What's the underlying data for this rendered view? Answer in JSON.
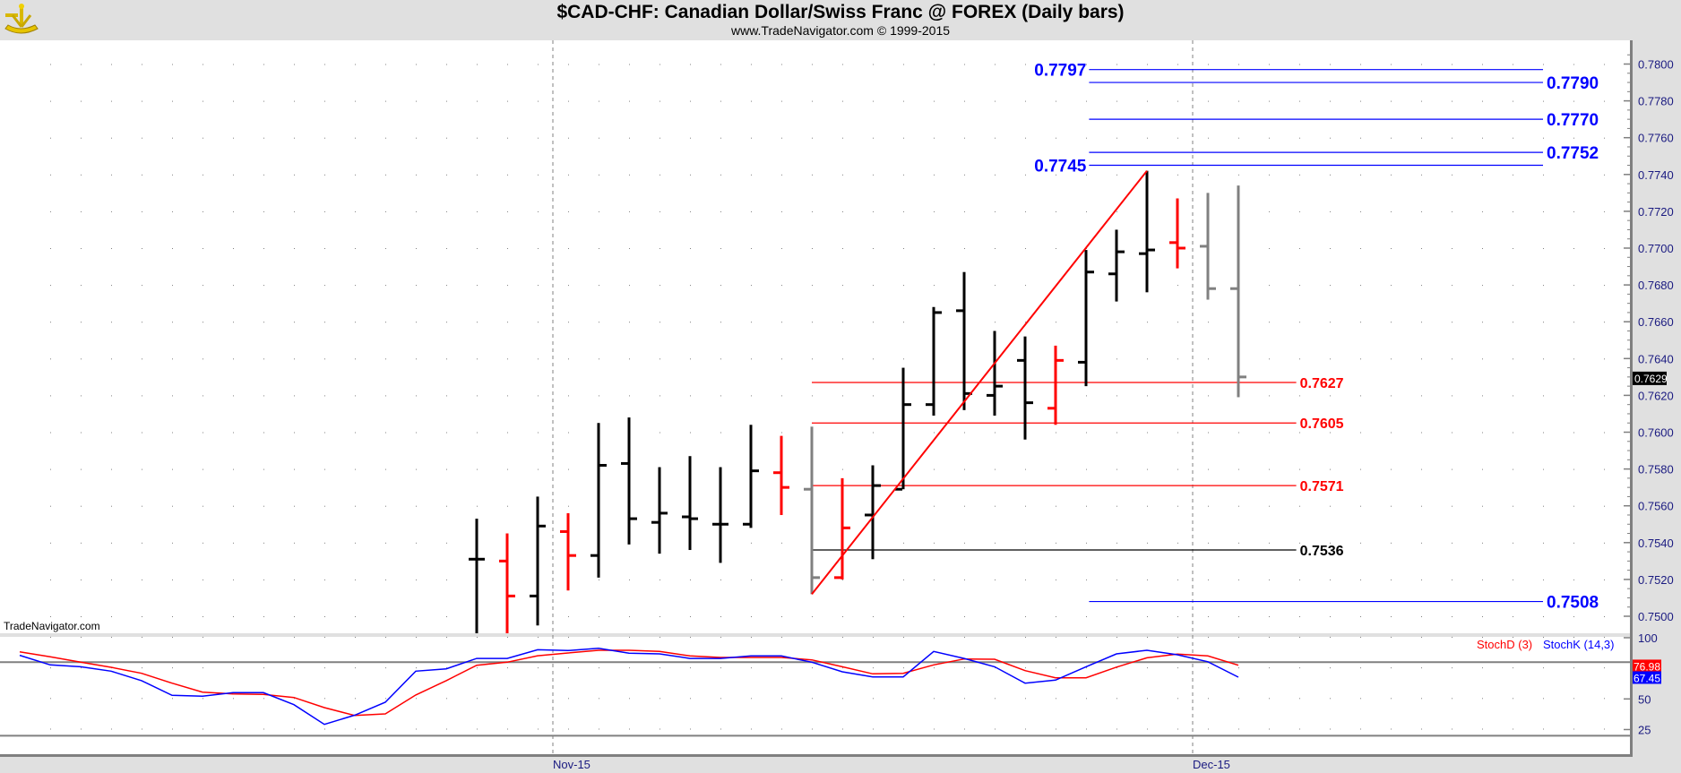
{
  "header": {
    "title": "$CAD-CHF:  Canadian Dollar/Swiss Franc @ FOREX  (Daily bars)",
    "subtitle": "www.TradeNavigator.com © 1999-2015",
    "logo_icon": "sextant-icon"
  },
  "watermark": "TradeNavigator.com",
  "chart_data": [
    {
      "type": "ohlc",
      "title": "$CAD-CHF:  Canadian Dollar/Swiss Franc @ FOREX  (Daily bars)",
      "ylim": [
        0.749,
        0.7805
      ],
      "yticks": [
        "0.7500",
        "0.7520",
        "0.7540",
        "0.7560",
        "0.7580",
        "0.7600",
        "0.7620",
        "0.7640",
        "0.7660",
        "0.7680",
        "0.7700",
        "0.7720",
        "0.7740",
        "0.7760",
        "0.7780",
        "0.7800"
      ],
      "last_price": "0.7629",
      "xlabels": [
        {
          "label": "Nov-15",
          "index": 17.5
        },
        {
          "label": "Dec-15",
          "index": 38.5
        }
      ],
      "bars": [
        {
          "i": 15,
          "o": 0.7531,
          "h": 0.7553,
          "l": 0.749,
          "c": 0.7531,
          "color": "#000000"
        },
        {
          "i": 16,
          "o": 0.753,
          "h": 0.7545,
          "l": 0.749,
          "c": 0.7511,
          "color": "#ff0000"
        },
        {
          "i": 17,
          "o": 0.7511,
          "h": 0.7565,
          "l": 0.7495,
          "c": 0.7549,
          "color": "#000000"
        },
        {
          "i": 18,
          "o": 0.7546,
          "h": 0.7556,
          "l": 0.7514,
          "c": 0.7533,
          "color": "#ff0000"
        },
        {
          "i": 19,
          "o": 0.7533,
          "h": 0.7605,
          "l": 0.7521,
          "c": 0.7582,
          "color": "#000000"
        },
        {
          "i": 20,
          "o": 0.7583,
          "h": 0.7608,
          "l": 0.7539,
          "c": 0.7553,
          "color": "#000000"
        },
        {
          "i": 21,
          "o": 0.7551,
          "h": 0.7581,
          "l": 0.7534,
          "c": 0.7556,
          "color": "#000000"
        },
        {
          "i": 22,
          "o": 0.7554,
          "h": 0.7587,
          "l": 0.7536,
          "c": 0.7553,
          "color": "#000000"
        },
        {
          "i": 23,
          "o": 0.755,
          "h": 0.7581,
          "l": 0.7529,
          "c": 0.755,
          "color": "#000000"
        },
        {
          "i": 24,
          "o": 0.755,
          "h": 0.7604,
          "l": 0.7548,
          "c": 0.7579,
          "color": "#000000"
        },
        {
          "i": 25,
          "o": 0.7578,
          "h": 0.7598,
          "l": 0.7555,
          "c": 0.757,
          "color": "#ff0000"
        },
        {
          "i": 26,
          "o": 0.7569,
          "h": 0.7603,
          "l": 0.7512,
          "c": 0.7521,
          "color": "#808080"
        },
        {
          "i": 27,
          "o": 0.7521,
          "h": 0.7575,
          "l": 0.752,
          "c": 0.7548,
          "color": "#ff0000"
        },
        {
          "i": 28,
          "o": 0.7555,
          "h": 0.7582,
          "l": 0.7531,
          "c": 0.7571,
          "color": "#000000"
        },
        {
          "i": 29,
          "o": 0.7569,
          "h": 0.7635,
          "l": 0.7569,
          "c": 0.7615,
          "color": "#000000"
        },
        {
          "i": 30,
          "o": 0.7615,
          "h": 0.7668,
          "l": 0.7609,
          "c": 0.7665,
          "color": "#000000"
        },
        {
          "i": 31,
          "o": 0.7666,
          "h": 0.7687,
          "l": 0.7612,
          "c": 0.7621,
          "color": "#000000"
        },
        {
          "i": 32,
          "o": 0.762,
          "h": 0.7655,
          "l": 0.7609,
          "c": 0.7625,
          "color": "#000000"
        },
        {
          "i": 33,
          "o": 0.7639,
          "h": 0.7652,
          "l": 0.7596,
          "c": 0.7616,
          "color": "#000000"
        },
        {
          "i": 34,
          "o": 0.7613,
          "h": 0.7647,
          "l": 0.7604,
          "c": 0.7639,
          "color": "#ff0000"
        },
        {
          "i": 35,
          "o": 0.7638,
          "h": 0.7699,
          "l": 0.7625,
          "c": 0.7687,
          "color": "#000000"
        },
        {
          "i": 36,
          "o": 0.7686,
          "h": 0.771,
          "l": 0.7671,
          "c": 0.7698,
          "color": "#000000"
        },
        {
          "i": 37,
          "o": 0.7697,
          "h": 0.7742,
          "l": 0.7676,
          "c": 0.7699,
          "color": "#000000"
        },
        {
          "i": 38,
          "o": 0.7703,
          "h": 0.7727,
          "l": 0.7689,
          "c": 0.77,
          "color": "#ff0000"
        },
        {
          "i": 39,
          "o": 0.7701,
          "h": 0.773,
          "l": 0.7672,
          "c": 0.7678,
          "color": "#808080"
        },
        {
          "i": 40,
          "o": 0.7678,
          "h": 0.7734,
          "l": 0.7619,
          "c": 0.763,
          "color": "#808080"
        }
      ],
      "levels": [
        {
          "label": "0.7797",
          "price": 0.7797,
          "color": "#0000ff",
          "from": 35.1,
          "to": 50,
          "side": "left"
        },
        {
          "label": "0.7790",
          "price": 0.779,
          "color": "#0000ff",
          "from": 35.1,
          "to": 50,
          "side": "right"
        },
        {
          "label": "0.7770",
          "price": 0.777,
          "color": "#0000ff",
          "from": 35.1,
          "to": 50,
          "side": "right"
        },
        {
          "label": "0.7752",
          "price": 0.7752,
          "color": "#0000ff",
          "from": 35.1,
          "to": 50,
          "side": "right"
        },
        {
          "label": "0.7745",
          "price": 0.7745,
          "color": "#0000ff",
          "from": 35.1,
          "to": 50,
          "side": "left"
        },
        {
          "label": "0.7508",
          "price": 0.7508,
          "color": "#0000ff",
          "from": 35.1,
          "to": 50,
          "side": "right"
        },
        {
          "label": "0.7627",
          "price": 0.7627,
          "color": "#ff0000",
          "from": 26,
          "to": 41.9,
          "side": "right"
        },
        {
          "label": "0.7605",
          "price": 0.7605,
          "color": "#ff0000",
          "from": 26,
          "to": 41.9,
          "side": "right"
        },
        {
          "label": "0.7571",
          "price": 0.7571,
          "color": "#ff0000",
          "from": 26,
          "to": 41.9,
          "side": "right"
        },
        {
          "label": "0.7536",
          "price": 0.7536,
          "color": "#000000",
          "from": 26,
          "to": 41.9,
          "side": "right"
        }
      ],
      "trendline": {
        "from": [
          26,
          0.7512
        ],
        "to": [
          37,
          0.7742
        ],
        "color": "#ff0000"
      }
    },
    {
      "type": "line",
      "title": "Stochastic",
      "ylim": [
        0,
        105
      ],
      "yticks": [
        "100",
        "50",
        "25"
      ],
      "reference_lines": [
        80,
        20
      ],
      "series": [
        {
          "name": "StochD (3)",
          "color": "#ff0000",
          "last": "76.98",
          "values": [
            88.5,
            84.4,
            80,
            75.8,
            70.9,
            62.9,
            55.6,
            54.1,
            53.7,
            51.2,
            42.9,
            36.5,
            37.8,
            53.2,
            64.9,
            77.5,
            80,
            85.3,
            87.5,
            89.7,
            89.7,
            88.8,
            85.1,
            83.9,
            83.9,
            83.9,
            81.9,
            76.3,
            70.5,
            70.9,
            77.8,
            82.6,
            82.4,
            73.1,
            67.3,
            67.3,
            76,
            83.6,
            86.6,
            85.1,
            77.5
          ]
        },
        {
          "name": "StochK (14,3)",
          "color": "#0000ff",
          "last": "67.45",
          "values": [
            85.6,
            77.8,
            76.3,
            72.7,
            64.9,
            52.9,
            52.2,
            55.1,
            55.1,
            45.3,
            29.2,
            36.8,
            47.3,
            72.7,
            74.6,
            83.1,
            83.1,
            90.2,
            89.5,
            91.4,
            87.3,
            86.8,
            83.1,
            83.1,
            85.1,
            85.1,
            80,
            72.2,
            68,
            68,
            88.8,
            83.1,
            76.3,
            62.9,
            65.4,
            76.3,
            86.8,
            89.7,
            86.1,
            80.4,
            67.8
          ]
        }
      ]
    }
  ]
}
